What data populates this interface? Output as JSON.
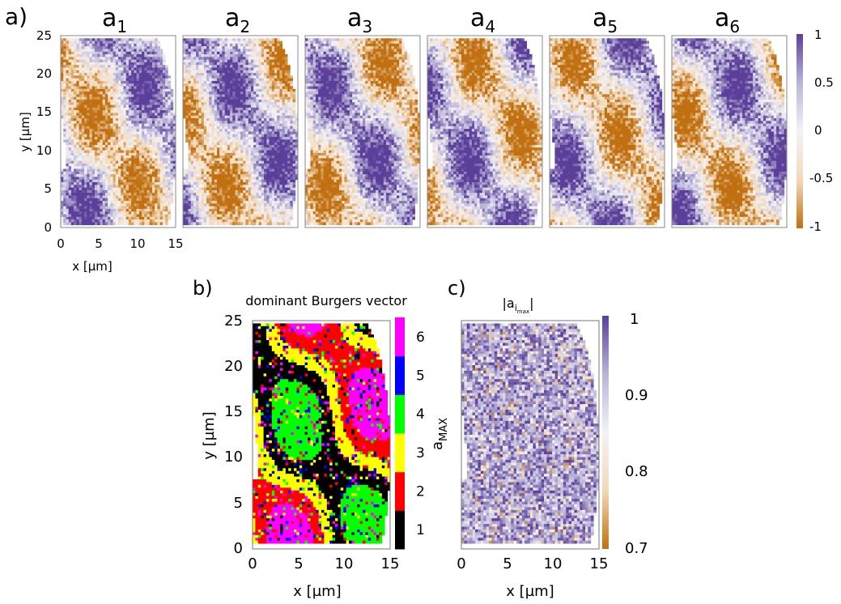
{
  "figure": {
    "colors": {
      "orange": "#c07010",
      "light_orange": "#f3d9b8",
      "white": "#f4f2f6",
      "lavender": "#b9b4d8",
      "purple": "#5b3f99",
      "background": "#ffffff"
    }
  },
  "chart_data": [
    {
      "type": "heatmap",
      "panel_label": "a)",
      "subplot_titles": [
        {
          "base": "a",
          "sub": "1"
        },
        {
          "base": "a",
          "sub": "2"
        },
        {
          "base": "a",
          "sub": "3"
        },
        {
          "base": "a",
          "sub": "4"
        },
        {
          "base": "a",
          "sub": "5"
        },
        {
          "base": "a",
          "sub": "6"
        }
      ],
      "xlabel": "x [µm]",
      "ylabel": "y [µm]",
      "xlim": [
        0,
        15
      ],
      "ylim": [
        0,
        25
      ],
      "x_ticks": [
        "0",
        "5",
        "10",
        "15"
      ],
      "y_ticks": [
        "0",
        "5",
        "10",
        "15",
        "20",
        "25"
      ],
      "colorbar": {
        "range": [
          -1,
          1
        ],
        "tick_labels": [
          "1",
          "0.5",
          "0",
          "-0.5",
          "-1"
        ],
        "colormap": [
          "#c07010",
          "#f3d9b8",
          "#f4f2f6",
          "#b9b4d8",
          "#5b3f99"
        ]
      }
    },
    {
      "type": "heatmap",
      "panel_label": "b)",
      "title": "dominant Burgers vector",
      "xlabel": "x [µm]",
      "ylabel": "y [µm]",
      "xlim": [
        0,
        15
      ],
      "ylim": [
        0,
        25
      ],
      "x_ticks": [
        "0",
        "5",
        "10",
        "15"
      ],
      "y_ticks": [
        "0",
        "5",
        "10",
        "15",
        "20",
        "25"
      ],
      "colorbar": {
        "label_base": "a",
        "label_sub": "MAX",
        "categories": [
          "1",
          "2",
          "3",
          "4",
          "5",
          "6"
        ],
        "colors": [
          "#000000",
          "#ff0000",
          "#ffff00",
          "#00ff00",
          "#0000ff",
          "#ff00ff"
        ]
      }
    },
    {
      "type": "heatmap",
      "panel_label": "c)",
      "title": {
        "pre": "|a",
        "sub": "i",
        "subsub": "max",
        "post": "|"
      },
      "xlabel": "x [µm]",
      "xlim": [
        0,
        15
      ],
      "ylim": [
        0,
        25
      ],
      "x_ticks": [
        "0",
        "5",
        "10",
        "15"
      ],
      "colorbar": {
        "range": [
          0.7,
          1
        ],
        "tick_labels": [
          "1",
          "0.9",
          "0.8",
          "0.7"
        ],
        "colormap": [
          "#c07010",
          "#f3d9b8",
          "#f4f2f6",
          "#b9b4d8",
          "#5b3f99"
        ]
      }
    }
  ]
}
